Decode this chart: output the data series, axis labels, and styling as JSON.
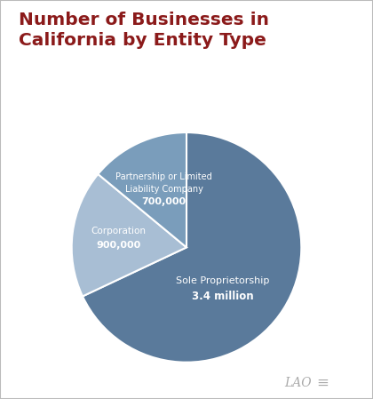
{
  "title": "Number of Businesses in\nCalifornia by Entity Type",
  "title_color": "#8B1A1A",
  "background_color": "#FFFFFF",
  "border_color": "#BBBBBB",
  "slices": [
    {
      "label": "Sole Proprietorship",
      "value": 3400000,
      "color": "#5A7A9B",
      "value_label": "3.4 million"
    },
    {
      "label": "Corporation",
      "value": 900000,
      "color": "#A8BED4",
      "value_label": "900,000"
    },
    {
      "label": "Partnership or Limited\nLiability Company",
      "value": 700000,
      "color": "#7A9DBB",
      "value_label": "700,000"
    }
  ],
  "lao_color": "#AAAAAA",
  "figsize": [
    4.2,
    4.49
  ],
  "dpi": 100,
  "startangle": 90,
  "label_positions": {
    "sole": [
      -0.28,
      -0.05
    ],
    "corp": [
      0.22,
      0.38
    ],
    "partner": [
      0.72,
      0.1
    ]
  }
}
